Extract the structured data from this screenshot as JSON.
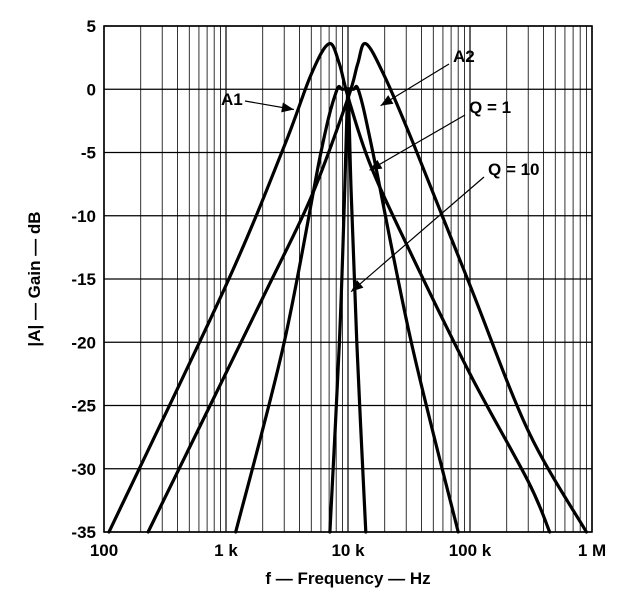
{
  "chart_data": {
    "type": "line",
    "title": "",
    "xlabel": "f — Frequency — Hz",
    "ylabel": "|A| — Gain — dB",
    "x_scale": "log",
    "xlim": [
      100,
      1000000
    ],
    "ylim": [
      -35,
      5
    ],
    "grid": true,
    "x_ticks": [
      {
        "value": 100,
        "label": "100"
      },
      {
        "value": 1000,
        "label": "1 k"
      },
      {
        "value": 10000,
        "label": "10 k"
      },
      {
        "value": 100000,
        "label": "100 k"
      },
      {
        "value": 1000000,
        "label": "1 M"
      }
    ],
    "y_ticks": [
      {
        "value": 5,
        "label": "5"
      },
      {
        "value": 0,
        "label": "0"
      },
      {
        "value": -5,
        "label": "-5"
      },
      {
        "value": -10,
        "label": "-10"
      },
      {
        "value": -15,
        "label": "-15"
      },
      {
        "value": -20,
        "label": "-20"
      },
      {
        "value": -25,
        "label": "-25"
      },
      {
        "value": -30,
        "label": "-30"
      },
      {
        "value": -35,
        "label": "-35"
      }
    ],
    "series": [
      {
        "name": "A1",
        "points": [
          [
            110,
            -35
          ],
          [
            1000,
            -15.5
          ],
          [
            3000,
            -4.5
          ],
          [
            5000,
            1.2
          ],
          [
            7000,
            3.6
          ],
          [
            8500,
            2.0
          ],
          [
            10000,
            -0.6
          ],
          [
            15000,
            -5.8
          ],
          [
            30000,
            -12.2
          ],
          [
            100000,
            -22.5
          ],
          [
            300000,
            -31.0
          ],
          [
            450000,
            -35
          ]
        ]
      },
      {
        "name": "A2",
        "points": [
          [
            230,
            -35
          ],
          [
            2000,
            -16.5
          ],
          [
            5000,
            -8.5
          ],
          [
            10000,
            -0.7
          ],
          [
            12000,
            2.0
          ],
          [
            14000,
            3.6
          ],
          [
            20000,
            1.0
          ],
          [
            35000,
            -4.5
          ],
          [
            100000,
            -15.5
          ],
          [
            300000,
            -27.0
          ],
          [
            900000,
            -35
          ]
        ]
      },
      {
        "name": "Q = 1",
        "points": [
          [
            1200,
            -35
          ],
          [
            3000,
            -20.0
          ],
          [
            6000,
            -5.0
          ],
          [
            8000,
            -0.2
          ],
          [
            9000,
            0.0
          ],
          [
            11000,
            0.0
          ],
          [
            12300,
            -0.2
          ],
          [
            16000,
            -5.0
          ],
          [
            33000,
            -20.0
          ],
          [
            80000,
            -35
          ]
        ]
      },
      {
        "name": "Q = 10",
        "points": [
          [
            7100,
            -35
          ],
          [
            8500,
            -20.0
          ],
          [
            9400,
            -8.0
          ],
          [
            9800,
            -2.0
          ],
          [
            10000,
            0.0
          ],
          [
            10200,
            -2.0
          ],
          [
            10600,
            -8.0
          ],
          [
            11800,
            -20.0
          ],
          [
            14000,
            -35
          ]
        ]
      }
    ],
    "annotations": [
      {
        "text": "A1",
        "target": [
          3600,
          -1.6
        ]
      },
      {
        "text": "A2",
        "target": [
          18500,
          -1.3
        ]
      },
      {
        "text": "Q = 1",
        "target": [
          15000,
          -6.4
        ]
      },
      {
        "text": "Q = 10",
        "target": [
          10600,
          -16.0
        ]
      }
    ]
  }
}
